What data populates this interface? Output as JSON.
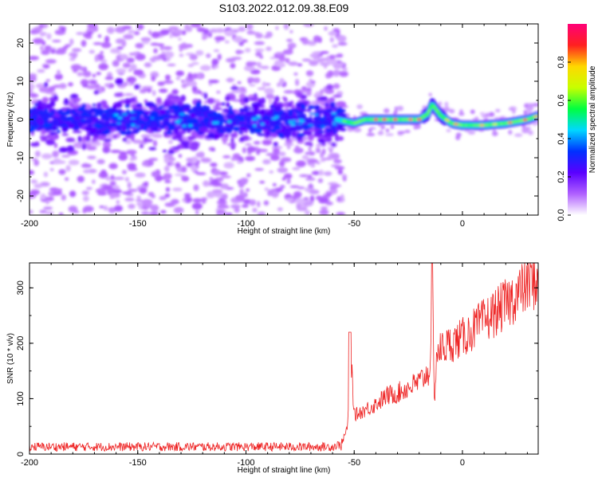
{
  "title": "S103.2022.012.09.38.E09",
  "chart_data": [
    {
      "type": "heatmap",
      "xlabel": "Height of straight line (km)",
      "ylabel": "Frequency (Hz)",
      "xlim": [
        -200,
        35
      ],
      "ylim": [
        -25,
        25
      ],
      "xticks": [
        -200,
        -150,
        -100,
        -50,
        0
      ],
      "yticks": [
        -20,
        -10,
        0,
        10,
        20
      ],
      "colorbar": {
        "label": "Normalized spectral amplitude",
        "range": [
          0,
          1
        ],
        "ticks": [
          "0.0",
          "0.2",
          "0.4",
          "0.6",
          "0.8"
        ],
        "tick_values": [
          0.0,
          0.2,
          0.4,
          0.6,
          0.8
        ],
        "colors": [
          "#ffffff",
          "#b060ff",
          "#5a00ff",
          "#0030ff",
          "#00d8ff",
          "#00ff40",
          "#c8ff00",
          "#ffd800",
          "#ff2020",
          "#ff0078"
        ]
      },
      "features": {
        "noisy_band": {
          "x": [
            -200,
            -58
          ],
          "y_center": 0,
          "y_halfwidth": 8
        },
        "signal_track": {
          "x": [
            -58,
            -50,
            -45,
            -40,
            -30,
            -20,
            -16,
            -14,
            -10,
            -5,
            0,
            10,
            20,
            30,
            35
          ],
          "y": [
            0,
            -1,
            0,
            0,
            0,
            0,
            1.5,
            4,
            1,
            -1,
            -1.5,
            -1.5,
            -1,
            0,
            1
          ]
        }
      }
    },
    {
      "type": "line",
      "xlabel": "Height of straight line (km)",
      "ylabel": "SNR (10 * v/v)",
      "xlim": [
        -200,
        35
      ],
      "ylim": [
        0,
        345
      ],
      "xticks": [
        -200,
        -150,
        -100,
        -50,
        0
      ],
      "yticks": [
        0,
        100,
        200,
        300
      ],
      "series": [
        {
          "color": "#ee2222",
          "x": [
            -200,
            -150,
            -100,
            -60,
            -56,
            -53,
            -52,
            -50,
            -45,
            -40,
            -35,
            -30,
            -20,
            -15,
            -14,
            -13,
            -12,
            -10,
            0,
            10,
            20,
            30,
            35
          ],
          "y": [
            10,
            10,
            10,
            10,
            15,
            50,
            220,
            70,
            80,
            90,
            105,
            110,
            130,
            150,
            345,
            90,
            180,
            190,
            210,
            240,
            270,
            305,
            315
          ]
        }
      ]
    }
  ]
}
